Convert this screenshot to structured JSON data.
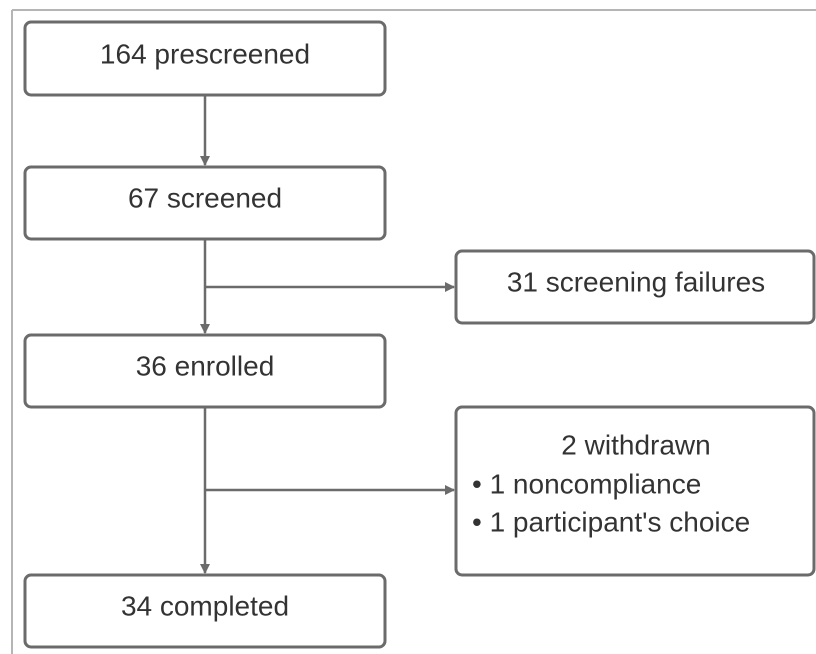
{
  "nodes": [
    {
      "label": "164 prescreened"
    },
    {
      "label": "67 screened"
    },
    {
      "label": "31 screening failures"
    },
    {
      "label": "36 enrolled"
    },
    {
      "label": "2 withdrawn",
      "items": [
        "• 1 noncompliance",
        "• 1 participant's choice"
      ]
    },
    {
      "label": "34 completed"
    }
  ]
}
